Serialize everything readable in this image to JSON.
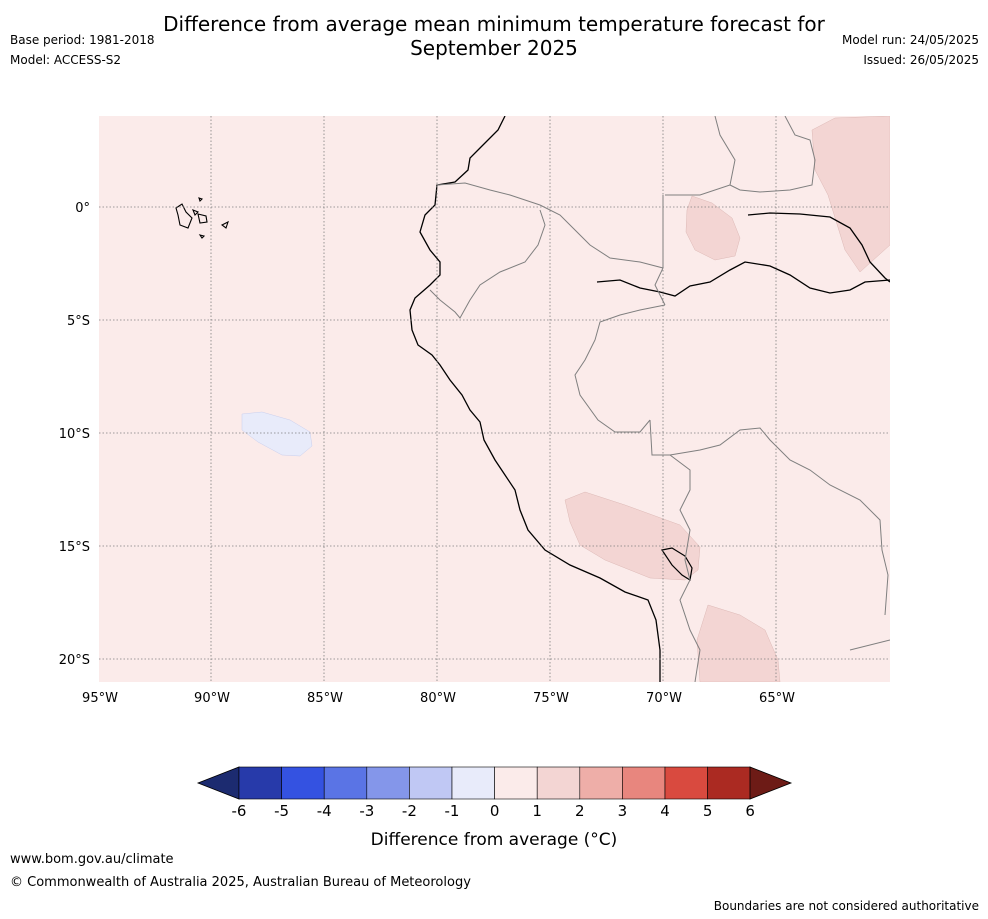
{
  "header": {
    "title_line1": "Difference from average mean minimum temperature forecast for",
    "title_line2": "September 2025",
    "base_period": "Base period: 1981-2018",
    "model": "Model: ACCESS-S2",
    "model_run": "Model run: 24/05/2025",
    "issued": "Issued: 26/05/2025"
  },
  "map": {
    "lat_labels": [
      "0°",
      "5°S",
      "10°S",
      "15°S",
      "20°S"
    ],
    "lon_labels": [
      "95°W",
      "90°W",
      "85°W",
      "80°W",
      "75°W",
      "70°W",
      "65°W"
    ],
    "lat_values": [
      0,
      -5,
      -10,
      -15,
      -20
    ],
    "lon_values": [
      -95,
      -90,
      -85,
      -80,
      -75,
      -70,
      -65
    ],
    "background_anomaly_class": "0 to 1",
    "background_color": "#fbebea",
    "warm_patch_color": "#f3d5d3",
    "cool_patch_color": "#e8ebfa"
  },
  "legend": {
    "tick_labels": [
      "-6",
      "-5",
      "-4",
      "-3",
      "-2",
      "-1",
      "0",
      "1",
      "2",
      "3",
      "4",
      "5",
      "6"
    ],
    "colors": [
      "#273aaa",
      "#3452e1",
      "#5a74e5",
      "#8496ea",
      "#c0c8f4",
      "#e8ebfa",
      "#fbebea",
      "#f3d5d3",
      "#eeaea8",
      "#e8867e",
      "#d94a3f",
      "#ab2a22"
    ],
    "under_color": "#1c2b70",
    "over_color": "#6d1b16",
    "label": "Difference from average (°C)"
  },
  "footer": {
    "url": "www.bom.gov.au/climate",
    "copyright": "© Commonwealth of Australia 2025, Australian Bureau of Meteorology",
    "disclaimer": "Boundaries are not considered authoritative"
  }
}
